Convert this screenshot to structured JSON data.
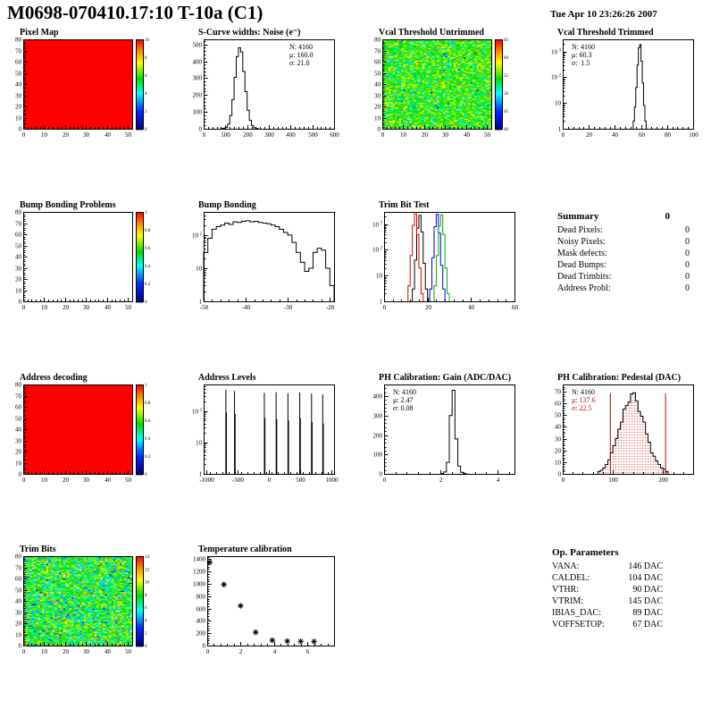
{
  "page": {
    "title": "M0698-070410.17:10 T-10a (C1)",
    "datetime": "Tue Apr 10 23:26:26 2007"
  },
  "summary": {
    "heading": "Summary",
    "heading_value": "0",
    "rows": [
      {
        "label": "Dead Pixels:",
        "value": "0"
      },
      {
        "label": "Noisy Pixels:",
        "value": "0"
      },
      {
        "label": "Mask defects:",
        "value": "0"
      },
      {
        "label": "Dead Bumps:",
        "value": "0"
      },
      {
        "label": "Dead Trimbits:",
        "value": "0"
      },
      {
        "label": "Address Probl:",
        "value": "0"
      }
    ]
  },
  "op_parameters": {
    "heading": "Op. Parameters",
    "rows": [
      {
        "label": "VANA:",
        "value": "146 DAC"
      },
      {
        "label": "CALDEL:",
        "value": "104 DAC"
      },
      {
        "label": "VTHR:",
        "value": "90 DAC"
      },
      {
        "label": "VTRIM:",
        "value": "145 DAC"
      },
      {
        "label": "IBIAS_DAC:",
        "value": "89 DAC"
      },
      {
        "label": "VOFFSETOP:",
        "value": "67 DAC"
      }
    ]
  },
  "chart_data": [
    {
      "id": "pixel-map",
      "title": "Pixel Map",
      "type": "heatmap",
      "x_range": [
        0,
        52
      ],
      "y_range": [
        0,
        80
      ],
      "x_ticks": [
        0,
        10,
        20,
        30,
        40,
        50
      ],
      "y_ticks": [
        0,
        10,
        20,
        30,
        40,
        50,
        60,
        70,
        80
      ],
      "pattern": "solid",
      "value": 1,
      "value_range": [
        0,
        10
      ],
      "colorbar_ticks": [
        0,
        2,
        4,
        6,
        8,
        10
      ]
    },
    {
      "id": "s-curve-noise",
      "title": "S-Curve widths: Noise (e⁻)",
      "type": "hist",
      "x_range": [
        0,
        600
      ],
      "x_ticks": [
        0,
        100,
        200,
        300,
        400,
        500,
        600
      ],
      "y_range": [
        0,
        530
      ],
      "y_ticks": [
        0,
        100,
        200,
        300,
        400,
        500
      ],
      "bins": {
        "start": 80,
        "width": 10,
        "counts": [
          1,
          3,
          8,
          28,
          78,
          173,
          305,
          428,
          480,
          455,
          340,
          220,
          110,
          50,
          18,
          6,
          2
        ]
      },
      "stats": {
        "pos": "right",
        "lines": [
          {
            "text": "N: 4160",
            "color": "#000000"
          },
          {
            "text": "μ: 160.0",
            "color": "#000000"
          },
          {
            "text": "σ: 21.0",
            "color": "#000000"
          }
        ]
      }
    },
    {
      "id": "vcal-untrimmed",
      "title": "Vcal Threshold Untrimmed",
      "type": "heatmap",
      "x_range": [
        0,
        52
      ],
      "y_range": [
        0,
        80
      ],
      "x_ticks": [
        0,
        10,
        20,
        30,
        40,
        50
      ],
      "y_ticks": [
        0,
        10,
        20,
        30,
        40,
        50,
        60,
        70,
        80
      ],
      "pattern": "noise",
      "noise_mean": 0.58,
      "noise_sd": 0.1,
      "outlier_frac": 0.04,
      "value_range": [
        40,
        65
      ],
      "colorbar_ticks": [
        40,
        45,
        50,
        55,
        60,
        65
      ]
    },
    {
      "id": "vcal-trimmed",
      "title": "Vcal Threshold Trimmed",
      "type": "hist",
      "ylog": true,
      "x_range": [
        0,
        100
      ],
      "x_ticks": [
        0,
        20,
        40,
        60,
        80,
        100
      ],
      "y_range": [
        1,
        3000
      ],
      "bins": {
        "start": 54,
        "width": 1,
        "counts": [
          2,
          7,
          40,
          300,
          1400,
          1900,
          420,
          60,
          8,
          2
        ]
      },
      "stats": {
        "pos": "left",
        "lines": [
          {
            "text": "N: 4160",
            "color": "#000000"
          },
          {
            "text": "μ: 60.3",
            "color": "#000000"
          },
          {
            "text": "σ:  1.5",
            "color": "#000000"
          }
        ]
      }
    },
    {
      "id": "bump-problems",
      "title": "Bump Bonding Problems",
      "type": "heatmap",
      "x_range": [
        0,
        52
      ],
      "y_range": [
        0,
        80
      ],
      "x_ticks": [
        0,
        10,
        20,
        30,
        40,
        50
      ],
      "y_ticks": [
        0,
        10,
        20,
        30,
        40,
        50,
        60,
        70,
        80
      ],
      "pattern": "empty",
      "value_range": [
        0,
        1
      ],
      "colorbar_ticks": [
        0,
        0.2,
        0.4,
        0.6,
        0.8,
        1
      ]
    },
    {
      "id": "bump-bonding",
      "title": "Bump Bonding",
      "type": "hist",
      "ylog": true,
      "x_range": [
        -50,
        -19
      ],
      "x_ticks": [
        -50,
        -40,
        -30,
        -20
      ],
      "y_range": [
        1,
        500
      ],
      "bins": {
        "start": -50,
        "width": 1,
        "counts": [
          30,
          80,
          150,
          180,
          200,
          230,
          210,
          250,
          240,
          260,
          270,
          250,
          260,
          240,
          230,
          220,
          200,
          180,
          150,
          120,
          100,
          60,
          30,
          15,
          8,
          10,
          30,
          40,
          35,
          10,
          3
        ]
      }
    },
    {
      "id": "trim-bit-test",
      "title": "Trim Bit Test",
      "type": "hist-multi",
      "ylog": true,
      "x_range": [
        0,
        60
      ],
      "x_ticks": [
        0,
        20,
        40,
        60
      ],
      "y_range": [
        1,
        3000
      ],
      "series": [
        {
          "name": "trim-bit-0",
          "color": "#000000",
          "bins": {
            "start": 13,
            "width": 1,
            "counts": [
              3,
              40,
              700,
              2200,
              500,
              30,
              3
            ]
          }
        },
        {
          "name": "trim-bit-1",
          "color": "#dd0000",
          "bins": {
            "start": 11,
            "width": 1,
            "counts": [
              4,
              60,
              900,
              2500,
              400,
              20,
              2
            ]
          }
        },
        {
          "name": "trim-bit-2",
          "color": "#0000dd",
          "bins": {
            "start": 21,
            "width": 1,
            "counts": [
              3,
              50,
              800,
              2400,
              450,
              25,
              3
            ]
          }
        },
        {
          "name": "trim-bit-3",
          "color": "#00aa00",
          "bins": {
            "start": 23,
            "width": 1,
            "counts": [
              4,
              60,
              850,
              2300,
              400,
              20,
              2
            ]
          }
        }
      ]
    },
    {
      "id": "address-decoding",
      "title": "Address decoding",
      "type": "heatmap",
      "x_range": [
        0,
        52
      ],
      "y_range": [
        0,
        80
      ],
      "x_ticks": [
        0,
        10,
        20,
        30,
        40,
        50
      ],
      "y_ticks": [
        0,
        10,
        20,
        30,
        40,
        50,
        60,
        70,
        80
      ],
      "pattern": "solid",
      "value": 1,
      "value_range": [
        0,
        1
      ],
      "colorbar_ticks": [
        0,
        0.2,
        0.4,
        0.6,
        0.8,
        1
      ]
    },
    {
      "id": "address-levels",
      "title": "Address Levels",
      "type": "spikes",
      "ylog": true,
      "x_range": [
        -1050,
        1050
      ],
      "x_ticks": [
        -1000,
        -500,
        0,
        500,
        1000
      ],
      "y_range": [
        1,
        700
      ],
      "spikes": [
        [
          -700,
          480
        ],
        [
          -690,
          90
        ],
        [
          -560,
          430
        ],
        [
          -550,
          80
        ],
        [
          -80,
          380
        ],
        [
          -70,
          60
        ],
        [
          110,
          400
        ],
        [
          120,
          55
        ],
        [
          300,
          370
        ],
        [
          310,
          50
        ],
        [
          490,
          390
        ],
        [
          500,
          60
        ],
        [
          680,
          360
        ],
        [
          690,
          45
        ],
        [
          860,
          340
        ],
        [
          870,
          40
        ]
      ]
    },
    {
      "id": "ph-gain",
      "title": "PH Calibration: Gain (ADC/DAC)",
      "type": "hist",
      "x_range": [
        0,
        4.6
      ],
      "x_ticks": [
        0,
        2,
        4
      ],
      "y_range": [
        0,
        460
      ],
      "y_ticks": [
        0,
        100,
        200,
        300,
        400
      ],
      "bins": {
        "start": 2.0,
        "width": 0.1,
        "counts": [
          2,
          10,
          60,
          300,
          430,
          180,
          40,
          8,
          2
        ]
      },
      "stats": {
        "pos": "left",
        "lines": [
          {
            "text": "N: 4160",
            "color": "#000000"
          },
          {
            "text": "μ: 2.47",
            "color": "#000000"
          },
          {
            "text": "σ: 0.08",
            "color": "#000000"
          }
        ]
      }
    },
    {
      "id": "ph-pedestal",
      "title": "PH Calibration: Pedestal (DAC)",
      "type": "hist",
      "x_range": [
        0,
        260
      ],
      "x_ticks": [
        0,
        100,
        200
      ],
      "y_range": [
        0,
        76
      ],
      "y_ticks": [
        0,
        10,
        20,
        30,
        40,
        50,
        60,
        70
      ],
      "fill": "red-dots",
      "cut_lines": [
        95,
        205
      ],
      "bins": {
        "start": 70,
        "width": 5,
        "counts": [
          2,
          3,
          5,
          8,
          12,
          18,
          24,
          30,
          38,
          44,
          55,
          58,
          61,
          68,
          69,
          62,
          53,
          49,
          44,
          34,
          27,
          18,
          15,
          11,
          8,
          5,
          4,
          2
        ]
      },
      "stats": {
        "pos": "left",
        "lines": [
          {
            "text": "N: 4160",
            "color": "#000000"
          },
          {
            "text": "μ: 137.6",
            "color": "#cc0000"
          },
          {
            "text": "σ: 22.5",
            "color": "#cc0000"
          }
        ]
      }
    },
    {
      "id": "trim-bits",
      "title": "Trim Bits",
      "type": "heatmap",
      "x_range": [
        0,
        52
      ],
      "y_range": [
        0,
        80
      ],
      "x_ticks": [
        0,
        10,
        20,
        30,
        40,
        50
      ],
      "y_ticks": [
        0,
        10,
        20,
        30,
        40,
        50,
        60,
        70,
        80
      ],
      "pattern": "noise",
      "noise_mean": 0.55,
      "noise_sd": 0.13,
      "outlier_frac": 0.05,
      "value_range": [
        0,
        14
      ],
      "colorbar_ticks": [
        0,
        2,
        4,
        6,
        8,
        10,
        12,
        14
      ]
    },
    {
      "id": "temperature",
      "title": "Temperature calibration",
      "type": "scatter",
      "x_range": [
        0,
        7.6
      ],
      "x_ticks": [
        0,
        2,
        4,
        6
      ],
      "y_range": [
        0,
        1450
      ],
      "y_ticks": [
        0,
        200,
        400,
        600,
        800,
        1000,
        1200,
        1400
      ],
      "marker": "asterisk",
      "points": [
        [
          0.15,
          1350
        ],
        [
          1.0,
          990
        ],
        [
          2.0,
          645
        ],
        [
          2.9,
          215
        ],
        [
          3.9,
          85
        ],
        [
          4.8,
          72
        ],
        [
          5.6,
          68
        ],
        [
          6.4,
          66
        ]
      ]
    }
  ]
}
